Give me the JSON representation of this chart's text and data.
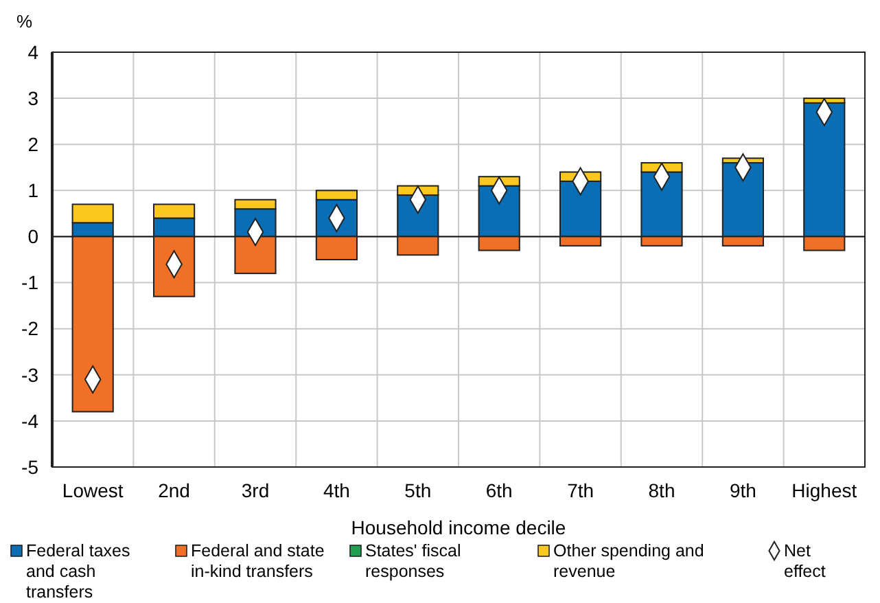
{
  "chart_data": {
    "type": "bar",
    "stacked": true,
    "ylabel": "%",
    "xlabel": "Household income decile",
    "categories": [
      "Lowest",
      "2nd",
      "3rd",
      "4th",
      "5th",
      "6th",
      "7th",
      "8th",
      "9th",
      "Highest"
    ],
    "series": [
      {
        "name": "Federal taxes and cash transfers",
        "color": "#0a6eb4",
        "values": [
          0.3,
          0.4,
          0.6,
          0.8,
          0.9,
          1.1,
          1.2,
          1.4,
          1.6,
          2.9
        ]
      },
      {
        "name": "Federal and state in-kind transfers",
        "color": "#f07028",
        "values": [
          -3.8,
          -1.3,
          -0.8,
          -0.5,
          -0.4,
          -0.3,
          -0.2,
          -0.2,
          -0.2,
          -0.3
        ]
      },
      {
        "name": "States' fiscal responses",
        "color": "#20a050",
        "values": [
          0,
          0,
          0,
          0,
          0,
          0,
          0,
          0,
          0,
          0
        ]
      },
      {
        "name": "Other spending and revenue",
        "color": "#fcc820",
        "values": [
          0.4,
          0.3,
          0.2,
          0.2,
          0.2,
          0.2,
          0.2,
          0.2,
          0.1,
          0.1
        ]
      },
      {
        "name": "Net effect",
        "type": "scatter",
        "marker": "diamond",
        "color": "#ffffff",
        "values": [
          -3.1,
          -0.6,
          0.1,
          0.4,
          0.8,
          1.0,
          1.2,
          1.3,
          1.5,
          2.7
        ]
      }
    ],
    "ylim": [
      -5,
      4
    ],
    "yticks": [
      -5,
      -4,
      -3,
      -2,
      -1,
      0,
      1,
      2,
      3,
      4
    ],
    "grid": true,
    "legend": "bottom"
  }
}
